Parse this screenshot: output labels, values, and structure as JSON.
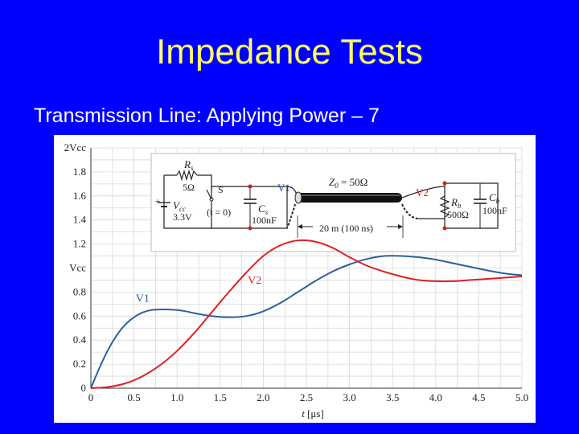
{
  "slide": {
    "title": "Impedance Tests",
    "subtitle": "Transmission Line: Applying Power – 7"
  },
  "colors": {
    "background": "#0000ff",
    "title": "#ffff66",
    "v1": "#2d5fa3",
    "v2": "#e02020",
    "circuit_text": "#1e4fa8"
  },
  "circuit": {
    "rs_label": "R",
    "rs_sub": "s",
    "rs_value": "5Ω",
    "vcc_label": "V",
    "vcc_sub": "cc",
    "vcc_value": "3.3V",
    "switch_label": "S",
    "switch_time": "(t = 0)",
    "cs_label": "C",
    "cs_sub": "s",
    "cs_value": "100nF",
    "v1_label": "V1",
    "z0_label": "Z",
    "z0_sub": "0",
    "z0_value": " = 50Ω",
    "v2_label": "V2",
    "rb_label": "R",
    "rb_sub": "b",
    "rb_value": "500Ω",
    "cb_label": "C",
    "cb_sub": "b",
    "cb_value": "100nF",
    "length_label": "20 m (100 ns)"
  },
  "chart_data": {
    "type": "line",
    "xlabel_var": "t",
    "xlabel_unit": "[μs]",
    "xlim": [
      0,
      5
    ],
    "ylim": [
      0,
      2
    ],
    "grid": true,
    "x_ticks": [
      "0",
      "0.5",
      "1.0",
      "1.5",
      "2.0",
      "2.5",
      "3.0",
      "3.5",
      "4.0",
      "4.5",
      "5.0"
    ],
    "y_ticks": [
      {
        "value": 0,
        "label": "0"
      },
      {
        "value": 0.2,
        "label": "0.2"
      },
      {
        "value": 0.4,
        "label": "0.4"
      },
      {
        "value": 0.6,
        "label": "0.6"
      },
      {
        "value": 0.8,
        "label": "0.8"
      },
      {
        "value": 1.0,
        "label": "Vcc"
      },
      {
        "value": 1.2,
        "label": "1.2"
      },
      {
        "value": 1.4,
        "label": "1.4"
      },
      {
        "value": 1.6,
        "label": "1.6"
      },
      {
        "value": 1.8,
        "label": "1.8"
      },
      {
        "value": 2.0,
        "label": "2Vcc"
      }
    ],
    "series": [
      {
        "name": "V1",
        "x": [
          0,
          0.1,
          0.2,
          0.3,
          0.4,
          0.5,
          0.6,
          0.7,
          0.8,
          0.9,
          1.0,
          1.1,
          1.2,
          1.4,
          1.6,
          1.8,
          2.0,
          2.2,
          2.4,
          2.6,
          2.8,
          3.0,
          3.2,
          3.4,
          3.6,
          3.8,
          4.0,
          4.2,
          4.4,
          4.6,
          4.8,
          5.0
        ],
        "values": [
          0,
          0.17,
          0.32,
          0.44,
          0.53,
          0.59,
          0.63,
          0.65,
          0.655,
          0.655,
          0.65,
          0.64,
          0.625,
          0.6,
          0.59,
          0.6,
          0.64,
          0.71,
          0.8,
          0.89,
          0.97,
          1.03,
          1.075,
          1.1,
          1.1,
          1.09,
          1.07,
          1.04,
          1.01,
          0.98,
          0.955,
          0.94
        ]
      },
      {
        "name": "V2",
        "x": [
          0,
          0.2,
          0.4,
          0.6,
          0.8,
          1.0,
          1.2,
          1.4,
          1.6,
          1.8,
          2.0,
          2.2,
          2.4,
          2.6,
          2.8,
          3.0,
          3.2,
          3.4,
          3.6,
          3.8,
          4.0,
          4.2,
          4.4,
          4.6,
          4.8,
          5.0
        ],
        "values": [
          0,
          0.01,
          0.04,
          0.1,
          0.19,
          0.31,
          0.46,
          0.63,
          0.8,
          0.96,
          1.1,
          1.19,
          1.23,
          1.22,
          1.17,
          1.09,
          1.02,
          0.97,
          0.93,
          0.9,
          0.89,
          0.89,
          0.9,
          0.91,
          0.92,
          0.93
        ]
      }
    ],
    "annotations": [
      {
        "text": "V1",
        "x": 0.6,
        "y": 0.72
      },
      {
        "text": "V2",
        "x": 1.9,
        "y": 0.87
      }
    ]
  }
}
